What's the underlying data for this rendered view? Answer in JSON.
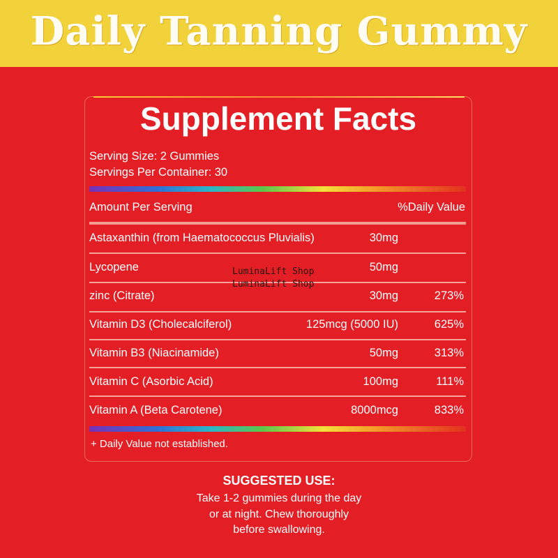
{
  "banner": {
    "title": "Daily Tanning Gummy"
  },
  "facts": {
    "title": "Supplement Facts",
    "serving_size": "Serving Size: 2 Gummies",
    "servings_per_container": "Servings Per Container: 30",
    "header_left": "Amount Per Serving",
    "header_right": "%Daily Value",
    "rows": [
      {
        "name": "Astaxanthin (from Haematococcus Pluvialis)",
        "amount": "30mg",
        "dv": ""
      },
      {
        "name": "Lycopene",
        "amount": "50mg",
        "dv": ""
      },
      {
        "name": "zinc (Citrate)",
        "amount": "30mg",
        "dv": "273%"
      },
      {
        "name": "Vitamin D3 (Cholecalciferol)",
        "amount": "125mcg (5000 IU)",
        "dv": "625%"
      },
      {
        "name": "Vitamin B3 (Niacinamide)",
        "amount": "50mg",
        "dv": "313%"
      },
      {
        "name": "Vitamin C (Asorbic Acid)",
        "amount": "100mg",
        "dv": "111%"
      },
      {
        "name": "Vitamin A (Beta Carotene)",
        "amount": "8000mcg",
        "dv": "833%"
      }
    ],
    "footnote": "+ Daily Value not established."
  },
  "watermark": {
    "line1": "LuminaLift Shop",
    "line2": "LuminaLift Shop"
  },
  "suggested_use": {
    "title": "SUGGESTED USE:",
    "lines": [
      "Take 1-2 gummies during the day",
      "or at night. Chew thoroughly",
      "before swallowing."
    ]
  },
  "colors": {
    "background": "#e41e25",
    "banner": "#f2d23a",
    "text": "#ffffff"
  }
}
